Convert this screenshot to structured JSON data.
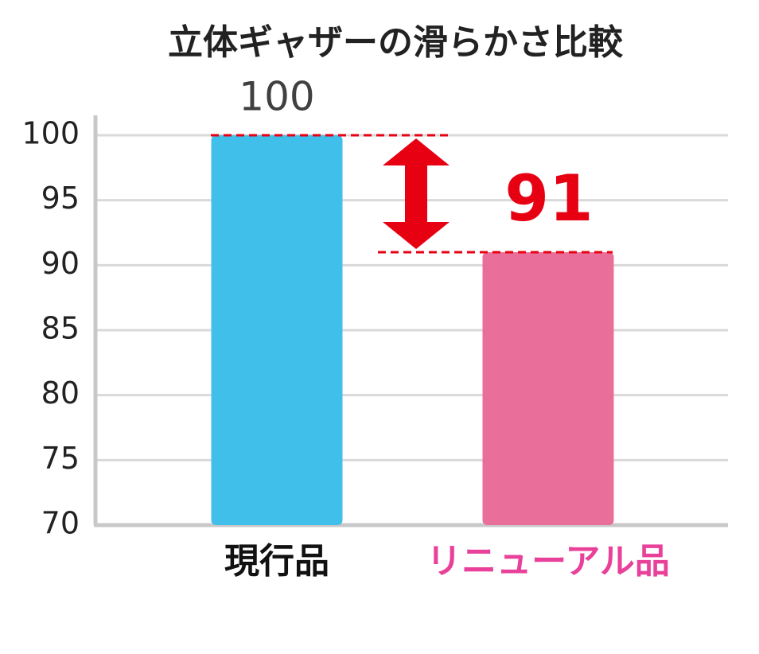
{
  "chart_data": {
    "type": "bar",
    "title": "立体ギャザーの滑らかさ比較",
    "categories": [
      "現行品",
      "リニューアル品"
    ],
    "values": [
      100,
      91
    ],
    "colors": [
      "#41bfeb",
      "#e96f9a"
    ],
    "category_colors": [
      "#111111",
      "#e9419a"
    ],
    "value_label_colors": [
      "#404040",
      "#e60012"
    ],
    "ylim": [
      70,
      100
    ],
    "yticks": [
      70,
      75,
      80,
      85,
      90,
      95,
      100
    ],
    "grid": true
  }
}
